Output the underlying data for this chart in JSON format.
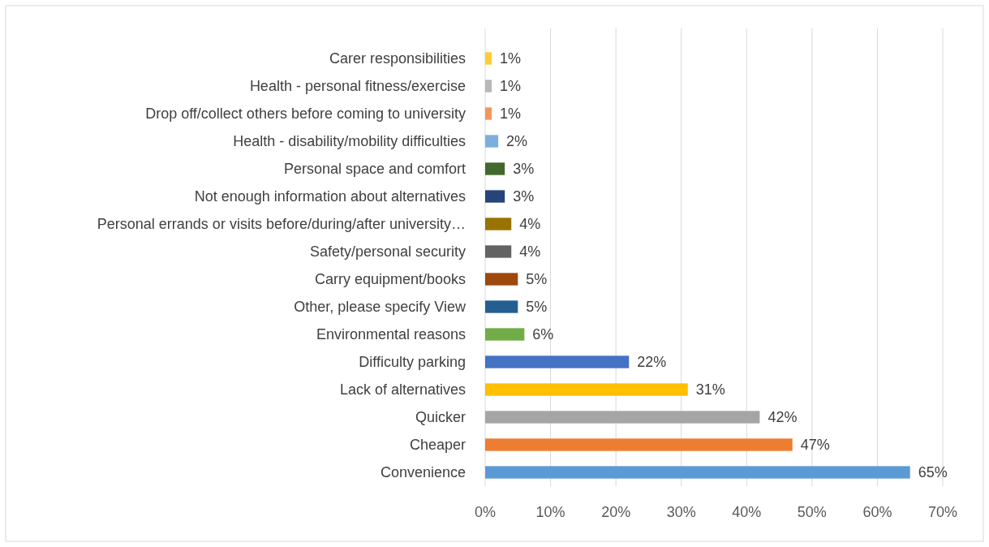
{
  "chart_data": {
    "type": "bar",
    "orientation": "horizontal",
    "categories": [
      "Carer responsibilities",
      "Health - personal fitness/exercise",
      "Drop off/collect others before coming to university",
      "Health - disability/mobility difficulties",
      "Personal space and comfort",
      "Not enough information about alternatives",
      "Personal errands or visits before/during/after university…",
      "Safety/personal security",
      "Carry equipment/books",
      "Other, please specify View",
      "Environmental reasons",
      "Difficulty parking",
      "Lack of alternatives",
      "Quicker",
      "Cheaper",
      "Convenience"
    ],
    "values": [
      1,
      1,
      1,
      2,
      3,
      3,
      4,
      4,
      5,
      5,
      6,
      22,
      31,
      42,
      47,
      65
    ],
    "value_labels": [
      "1%",
      "1%",
      "1%",
      "2%",
      "3%",
      "3%",
      "4%",
      "4%",
      "5%",
      "5%",
      "6%",
      "22%",
      "31%",
      "42%",
      "47%",
      "65%"
    ],
    "colors": [
      "#ffcd33",
      "#b7b7b7",
      "#f1975a",
      "#7cafdd",
      "#43682b",
      "#264478",
      "#997300",
      "#636363",
      "#9e480e",
      "#255e91",
      "#70ad47",
      "#4472c4",
      "#ffc000",
      "#a5a5a5",
      "#ed7d31",
      "#5b9bd5"
    ],
    "xlim": [
      0,
      70
    ],
    "xticks": [
      {
        "value": 0,
        "label": "0%"
      },
      {
        "value": 10,
        "label": "10%"
      },
      {
        "value": 20,
        "label": "20%"
      },
      {
        "value": 30,
        "label": "30%"
      },
      {
        "value": 40,
        "label": "40%"
      },
      {
        "value": 50,
        "label": "50%"
      },
      {
        "value": 60,
        "label": "60%"
      },
      {
        "value": 70,
        "label": "70%"
      }
    ],
    "grid": "x"
  }
}
